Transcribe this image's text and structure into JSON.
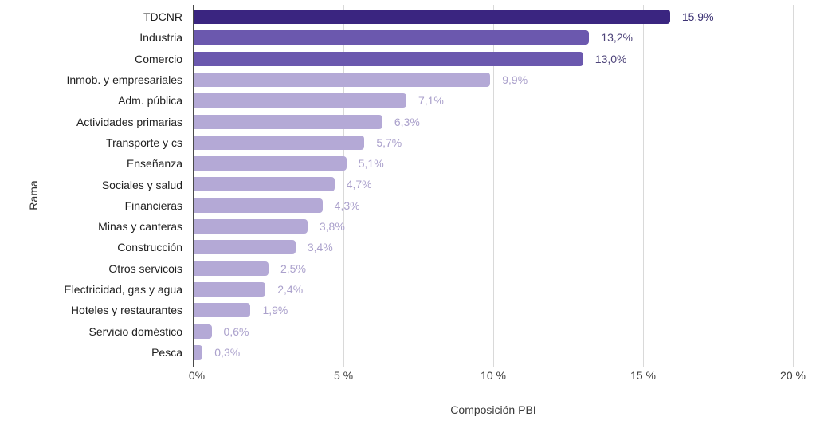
{
  "chart_data": {
    "type": "bar",
    "orientation": "horizontal",
    "title": "",
    "xlabel": "Composición PBI",
    "ylabel": "Rama",
    "xlim": [
      0,
      20
    ],
    "grid": "vertical-lines-on",
    "legend": "none",
    "x_ticks": [
      {
        "label": "0%",
        "value": 0
      },
      {
        "label": "5 %",
        "value": 5
      },
      {
        "label": "10 %",
        "value": 10
      },
      {
        "label": "15 %",
        "value": 15
      },
      {
        "label": "20 %",
        "value": 20
      }
    ],
    "categories": [
      "TDCNR",
      "Industria",
      "Comercio",
      "Inmob. y empresariales",
      "Adm. pública",
      "Actividades primarias",
      "Transporte y cs",
      "Enseñanza",
      "Sociales y salud",
      "Financieras",
      "Minas y canteras",
      "Construcción",
      "Otros servicois",
      "Electricidad, gas y agua",
      "Hoteles y restaurantes",
      "Servicio doméstico",
      "Pesca"
    ],
    "values": [
      15.9,
      13.2,
      13.0,
      9.9,
      7.1,
      6.3,
      5.7,
      5.1,
      4.7,
      4.3,
      3.8,
      3.4,
      2.5,
      2.4,
      1.9,
      0.6,
      0.3
    ],
    "value_labels": [
      "15,9%",
      "13,2%",
      "13,0%",
      "9,9%",
      "7,1%",
      "6,3%",
      "5,7%",
      "5,1%",
      "4,7%",
      "4,3%",
      "3,8%",
      "3,4%",
      "2,5%",
      "2,4%",
      "1,9%",
      "0,6%",
      "0,3%"
    ],
    "bar_colors": [
      "#3a2580",
      "#6b58ae",
      "#6b58ae",
      "#b4a9d6",
      "#b4a9d6",
      "#b4a9d6",
      "#b4a9d6",
      "#b4a9d6",
      "#b4a9d6",
      "#b4a9d6",
      "#b4a9d6",
      "#b4a9d6",
      "#b4a9d6",
      "#b4a9d6",
      "#b4a9d6",
      "#b4a9d6",
      "#b4a9d6"
    ],
    "value_label_colors": [
      "#3d3374",
      "#4d4379",
      "#4d4379",
      "#aba1cc",
      "#aba1cc",
      "#aba1cc",
      "#aba1cc",
      "#aba1cc",
      "#aba1cc",
      "#aba1cc",
      "#aba1cc",
      "#aba1cc",
      "#aba1cc",
      "#aba1cc",
      "#aba1cc",
      "#aba1cc",
      "#aba1cc"
    ],
    "colors": {
      "bar_dark": "#3a2580",
      "bar_medium": "#6b58ae",
      "bar_light": "#b4a9d6",
      "gridline": "#d9d9d9",
      "zero_axis": "#4a4a4a",
      "category_text": "#1f1f1f",
      "tick_text": "#3d3d3d",
      "background": "#ffffff"
    }
  }
}
